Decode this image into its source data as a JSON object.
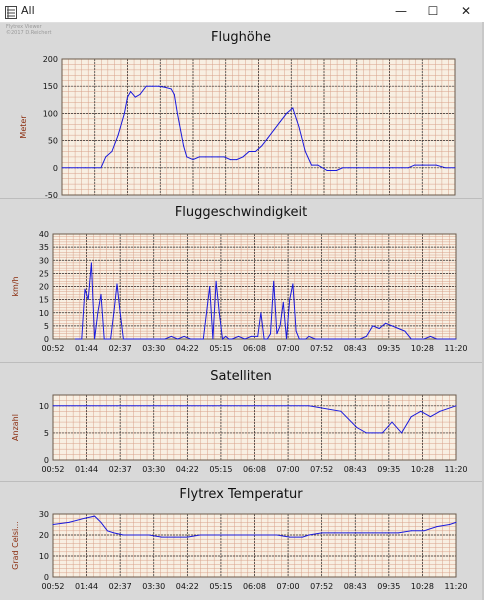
{
  "window": {
    "title": "All",
    "icon": "chart-app-icon",
    "minimize_glyph": "—",
    "maximize_glyph": "☐",
    "close_glyph": "✕",
    "watermark_line1": "Flytrex Viewer",
    "watermark_line2": "©2017 D.Reichert"
  },
  "colors": {
    "line": "#1a1adc",
    "axis_label": "#8b2d0e",
    "grid_minor": "#d8a08a",
    "grid_major": "#2a2a2a",
    "plot_bg": "#f8efe2"
  },
  "chart_data": [
    {
      "type": "line",
      "title": "Flughöhe",
      "ylabel": "Meter",
      "ylim": [
        -50,
        200
      ],
      "yticks": [
        -50,
        0,
        50,
        100,
        150,
        200
      ],
      "xticks": [
        "00:52",
        "01:44",
        "02:37",
        "03:30",
        "04:22",
        "05:15",
        "06:08",
        "07:00",
        "07:52",
        "08:43",
        "09:35",
        "10:28",
        "11:20"
      ],
      "x": [
        0,
        0.25,
        0.5,
        0.75,
        1.0,
        1.25,
        1.4,
        1.6,
        1.8,
        2.0,
        2.1,
        2.2,
        2.35,
        2.5,
        2.7,
        2.9,
        3.1,
        3.3,
        3.5,
        3.6,
        3.7,
        3.8,
        3.9,
        4.0,
        4.2,
        4.4,
        4.6,
        4.8,
        5.0,
        5.2,
        5.4,
        5.6,
        5.8,
        6.0,
        6.2,
        6.4,
        6.6,
        6.8,
        7.0,
        7.2,
        7.4,
        7.6,
        7.8,
        8.0,
        8.2,
        8.5,
        8.8,
        9.0,
        9.2,
        9.5,
        9.8,
        10.0,
        10.3,
        10.6,
        10.9,
        11.1,
        11.3,
        11.6,
        12.0,
        12.3,
        12.6
      ],
      "y": [
        0,
        0,
        0,
        0,
        0,
        0,
        20,
        30,
        60,
        100,
        130,
        140,
        130,
        135,
        150,
        150,
        150,
        148,
        145,
        135,
        100,
        70,
        40,
        20,
        15,
        20,
        20,
        20,
        20,
        20,
        15,
        15,
        20,
        30,
        30,
        40,
        55,
        70,
        85,
        100,
        110,
        75,
        30,
        5,
        5,
        -5,
        -5,
        0,
        0,
        0,
        0,
        0,
        0,
        0,
        0,
        0,
        5,
        5,
        5,
        0,
        0
      ],
      "series": [
        {
          "name": ""
        }
      ]
    },
    {
      "type": "line",
      "title": "Fluggeschwindigkeit",
      "ylabel": "km/h",
      "ylim": [
        0,
        40
      ],
      "yticks": [
        0,
        5,
        10,
        15,
        20,
        25,
        30,
        35,
        40
      ],
      "xticks": [
        "00:52",
        "01:44",
        "02:37",
        "03:30",
        "04:22",
        "05:15",
        "06:08",
        "07:00",
        "07:52",
        "08:43",
        "09:35",
        "10:28",
        "11:20"
      ],
      "x": [
        0.7,
        0.8,
        0.9,
        1.0,
        1.1,
        1.2,
        1.3,
        1.4,
        1.5,
        1.6,
        1.7,
        1.8,
        1.9,
        2.0,
        2.1,
        2.2,
        2.3,
        2.5,
        2.7,
        2.9,
        3.1,
        3.3,
        3.5,
        3.7,
        3.9,
        4.1,
        4.3,
        4.5,
        4.7,
        4.9,
        5.0,
        5.1,
        5.2,
        5.3,
        5.4,
        5.5,
        5.6,
        5.8,
        6.0,
        6.2,
        6.4,
        6.5,
        6.6,
        6.7,
        6.8,
        6.9,
        7.0,
        7.1,
        7.2,
        7.3,
        7.4,
        7.5,
        7.6,
        7.7,
        7.8,
        7.9,
        8.0,
        8.2,
        8.4,
        8.6,
        8.8,
        9.0,
        9.2,
        9.4,
        9.6,
        9.8,
        10.0,
        10.2,
        10.4,
        10.6,
        10.8,
        11.0,
        11.2,
        11.4,
        11.6,
        11.8,
        12.0,
        12.3,
        12.6
      ],
      "y": [
        0,
        0,
        0,
        19,
        15,
        29,
        0,
        10,
        17,
        0,
        0,
        0,
        10,
        21,
        10,
        0,
        0,
        0,
        0,
        0,
        0,
        0,
        0,
        1,
        0,
        1,
        0,
        0,
        0,
        20,
        0,
        22,
        10,
        0,
        1,
        0,
        0,
        1,
        0,
        1,
        1,
        10,
        0,
        0,
        2,
        22,
        2,
        5,
        14,
        0,
        15,
        21,
        3,
        0,
        0,
        0,
        1,
        0,
        0,
        0,
        0,
        0,
        0,
        0,
        0,
        1,
        5,
        4,
        6,
        5,
        4,
        3,
        0,
        0,
        0,
        1,
        0,
        0,
        0
      ],
      "series": [
        {
          "name": ""
        }
      ]
    },
    {
      "type": "line",
      "title": "Satelliten",
      "ylabel": "Anzahl",
      "ylim": [
        0,
        12
      ],
      "yticks": [
        0,
        5,
        10
      ],
      "xticks": [
        "00:52",
        "01:44",
        "02:37",
        "03:30",
        "04:22",
        "05:15",
        "06:08",
        "07:00",
        "07:52",
        "08:43",
        "09:35",
        "10:28",
        "11:20"
      ],
      "x": [
        0,
        1,
        2,
        3,
        4,
        5,
        6,
        7,
        8,
        9,
        9.5,
        9.8,
        10.0,
        10.3,
        10.6,
        10.9,
        11.2,
        11.5,
        11.8,
        12.1,
        12.6
      ],
      "y": [
        10,
        10,
        10,
        10,
        10,
        10,
        10,
        10,
        10,
        9,
        6,
        5,
        5,
        5,
        7,
        5,
        8,
        9,
        8,
        9,
        10
      ],
      "series": [
        {
          "name": ""
        }
      ]
    },
    {
      "type": "line",
      "title": "Flytrex Temperatur",
      "ylabel": "Grad Celsi...",
      "ylim": [
        0,
        30
      ],
      "yticks": [
        0,
        10,
        20,
        30
      ],
      "xticks": [
        "00:52",
        "01:44",
        "02:37",
        "03:30",
        "04:22",
        "05:15",
        "06:08",
        "07:00",
        "07:52",
        "08:43",
        "09:35",
        "10:28",
        "11:20"
      ],
      "x": [
        0,
        0.5,
        1.0,
        1.3,
        1.5,
        1.7,
        1.9,
        2.2,
        2.6,
        3.0,
        3.4,
        3.8,
        4.2,
        4.6,
        5.0,
        5.4,
        5.8,
        6.2,
        6.6,
        7.0,
        7.4,
        7.8,
        8.0,
        8.4,
        8.8,
        9.2,
        9.6,
        10.0,
        10.4,
        10.8,
        11.2,
        11.6,
        12.0,
        12.4,
        12.6
      ],
      "y": [
        25,
        26,
        28,
        29,
        26,
        22,
        21,
        20,
        20,
        20,
        19,
        19,
        19,
        20,
        20,
        20,
        20,
        20,
        20,
        20,
        19,
        19,
        20,
        21,
        21,
        21,
        21,
        21,
        21,
        21,
        22,
        22,
        24,
        25,
        26
      ],
      "series": [
        {
          "name": ""
        }
      ]
    }
  ]
}
